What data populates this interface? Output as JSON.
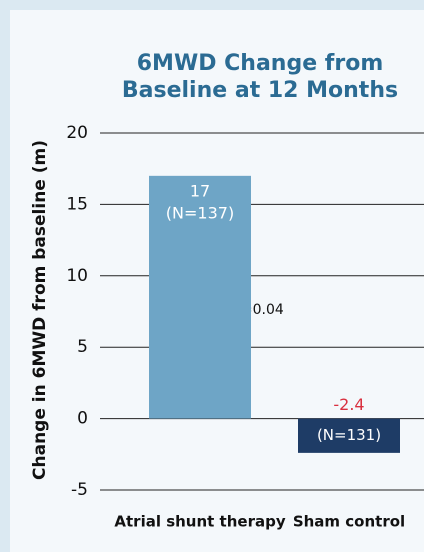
{
  "chart_data": {
    "type": "bar",
    "title": "6MWD Change from Baseline at 12 Months",
    "y_label": "Change in 6MWD from baseline (m)",
    "categories": [
      "Atrial shunt therapy",
      "Sham control"
    ],
    "values": [
      17,
      -2.4
    ],
    "colors": [
      "#6ea5c6",
      "#1e3c66"
    ],
    "n_labels": [
      "(N=137)",
      "(N=131)"
    ],
    "value_label_colors": [
      "#ffffff",
      "#d9303f"
    ],
    "annotation": "p=0.04",
    "ylim": [
      -5,
      20
    ],
    "yticks": [
      -5,
      0,
      5,
      10,
      15,
      20
    ],
    "grid": true
  }
}
